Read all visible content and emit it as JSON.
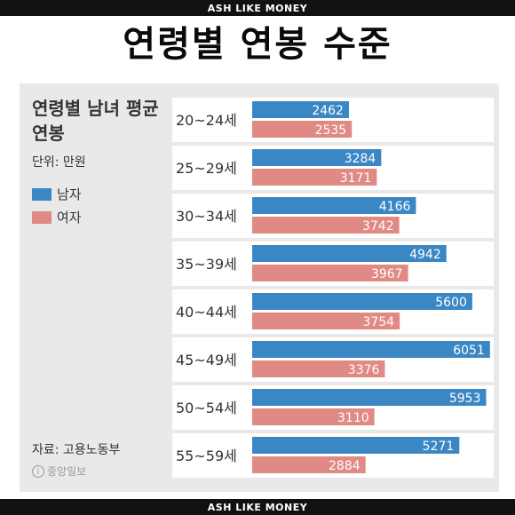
{
  "header": {
    "banner_top": "ASH LIKE MONEY",
    "banner_bottom": "ASH LIKE MONEY",
    "main_title": "연령별 연봉 수준"
  },
  "chart_data": {
    "type": "bar",
    "orientation": "horizontal",
    "title": "연령별 남녀 평균 연봉",
    "unit": "단위: 만원",
    "source": "자료: 고용노동부",
    "publisher_logo": "중앙일보",
    "categories": [
      "20~24세",
      "25~29세",
      "30~34세",
      "35~39세",
      "40~44세",
      "45~49세",
      "50~54세",
      "55~59세"
    ],
    "series": [
      {
        "name": "남자",
        "color": "#3b87c4",
        "values": [
          2462,
          3284,
          4166,
          4942,
          5600,
          6051,
          5953,
          5271
        ]
      },
      {
        "name": "여자",
        "color": "#df8a84",
        "values": [
          2535,
          3171,
          3742,
          3967,
          3754,
          3376,
          3110,
          2884
        ]
      }
    ],
    "legend": "top-left",
    "grid": false
  }
}
